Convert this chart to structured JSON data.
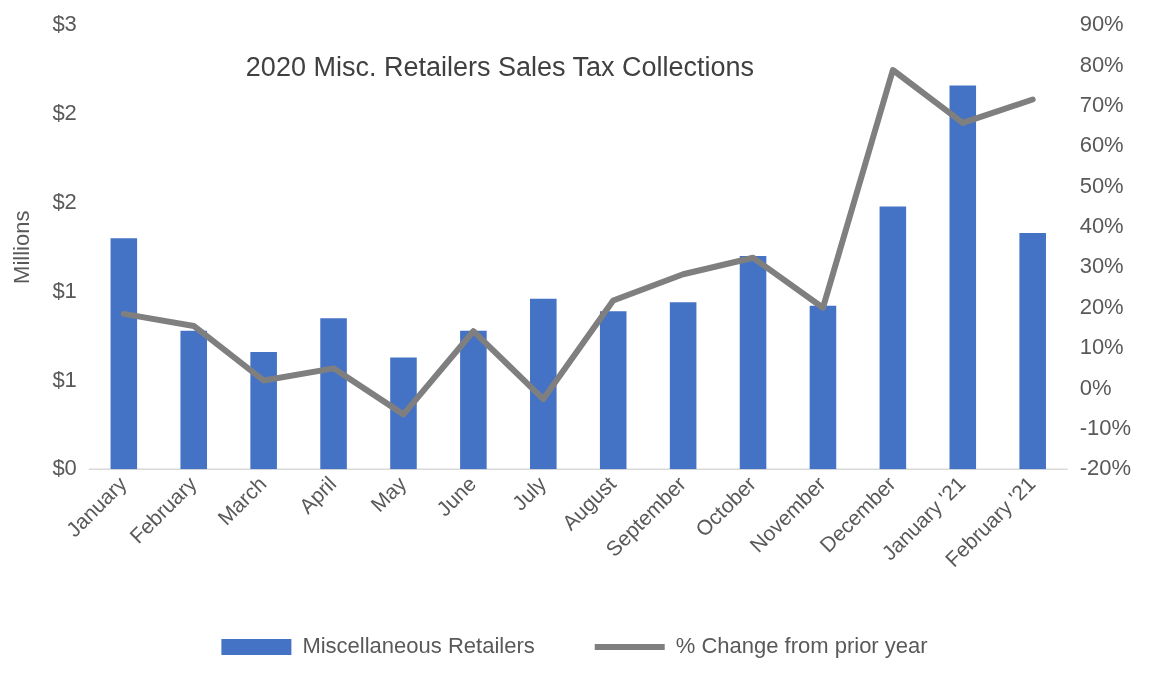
{
  "chart_data": {
    "type": "bar",
    "title": "2020 Misc. Retailers Sales Tax Collections",
    "ylabel": "Millions",
    "categories": [
      "January",
      "February",
      "March",
      "April",
      "May",
      "June",
      "July",
      "August",
      "September",
      "October",
      "November",
      "December",
      "January '21",
      "February '21"
    ],
    "series": [
      {
        "name": "Miscellaneous Retailers",
        "color": "#4472c4",
        "values": [
          1.3,
          0.78,
          0.66,
          0.85,
          0.63,
          0.78,
          0.96,
          0.89,
          0.94,
          1.2,
          0.92,
          1.48,
          2.16,
          1.33
        ]
      },
      {
        "name": "% Change from prior year",
        "type": "line",
        "axis": "y2",
        "color": "#7f7f7f",
        "values": [
          18.5,
          15.5,
          2,
          5,
          -6.4,
          14.2,
          -2.6,
          21.8,
          28.3,
          32.4,
          20,
          78.9,
          65.8,
          71.6
        ]
      }
    ],
    "ylim": [
      0,
      2.5
    ],
    "yticks": [
      {
        "value": 0,
        "label": "$0"
      },
      {
        "value": 0.5,
        "label": "$1"
      },
      {
        "value": 1,
        "label": "$1"
      },
      {
        "value": 1.5,
        "label": "$2"
      },
      {
        "value": 2,
        "label": "$2"
      },
      {
        "value": 2.5,
        "label": "$3"
      }
    ],
    "y2lim": [
      -20,
      90
    ],
    "y2ticks": [
      {
        "value": -20,
        "label": "-20%"
      },
      {
        "value": -10,
        "label": "-10%"
      },
      {
        "value": 0,
        "label": "0%"
      },
      {
        "value": 10,
        "label": "10%"
      },
      {
        "value": 20,
        "label": "20%"
      },
      {
        "value": 30,
        "label": "30%"
      },
      {
        "value": 40,
        "label": "40%"
      },
      {
        "value": 50,
        "label": "50%"
      },
      {
        "value": 60,
        "label": "60%"
      },
      {
        "value": 70,
        "label": "70%"
      },
      {
        "value": 80,
        "label": "80%"
      },
      {
        "value": 90,
        "label": "90%"
      }
    ],
    "grid": false,
    "legend": "bottom",
    "marker": "none",
    "line_style": "solid"
  }
}
